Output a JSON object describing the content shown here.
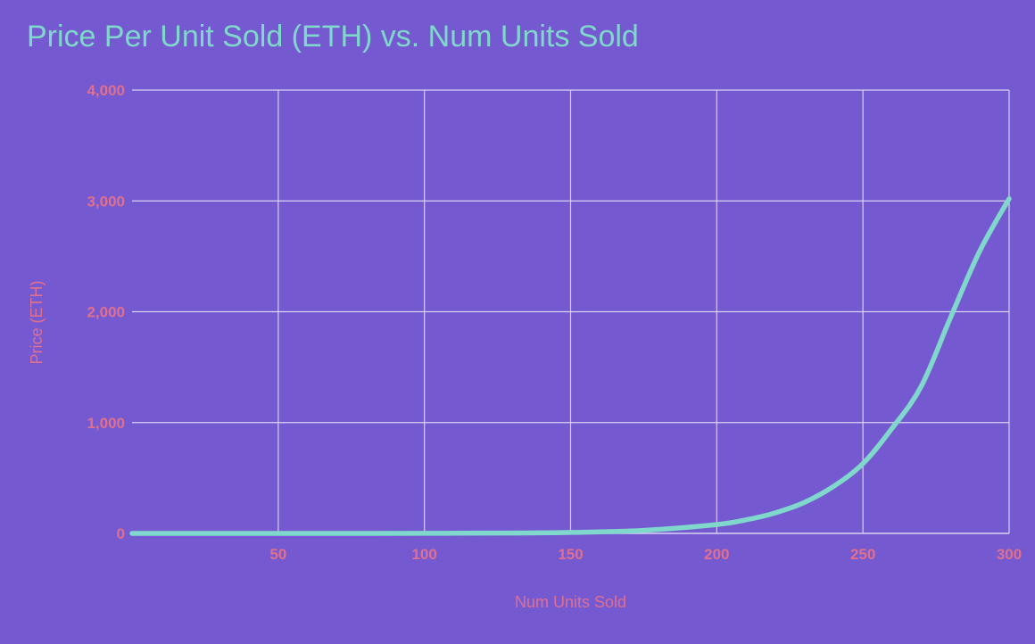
{
  "chart_data": {
    "type": "line",
    "title": "Price Per Unit Sold (ETH) vs. Num Units Sold",
    "xlabel": "Num Units Sold",
    "ylabel": "Price (ETH)",
    "xlim": [
      0,
      300
    ],
    "ylim": [
      0,
      4000
    ],
    "x_ticks": [
      50,
      100,
      150,
      200,
      250,
      300
    ],
    "x_tick_labels": [
      "50",
      "100",
      "150",
      "200",
      "250",
      "300"
    ],
    "y_ticks": [
      0,
      1000,
      2000,
      3000,
      4000
    ],
    "y_tick_labels": [
      "0",
      "1,000",
      "2,000",
      "3,000",
      "4,000"
    ],
    "grid": true,
    "series": [
      {
        "x": [
          0,
          25,
          50,
          75,
          100,
          125,
          150,
          175,
          200,
          210,
          220,
          230,
          240,
          250,
          260,
          270,
          280,
          290,
          300
        ],
        "y": [
          0,
          0,
          0,
          0.2,
          0.8,
          3,
          9,
          27,
          80,
          122,
          185,
          280,
          425,
          630,
          950,
          1330,
          1950,
          2550,
          3020
        ]
      }
    ],
    "colors": {
      "background": "#7559d0",
      "title": "#7fd8cb",
      "line": "#7fd8cb",
      "grid": "#d9d3f3",
      "tick_labels": "#e0708f",
      "axis_labels": "#e0708f"
    }
  }
}
